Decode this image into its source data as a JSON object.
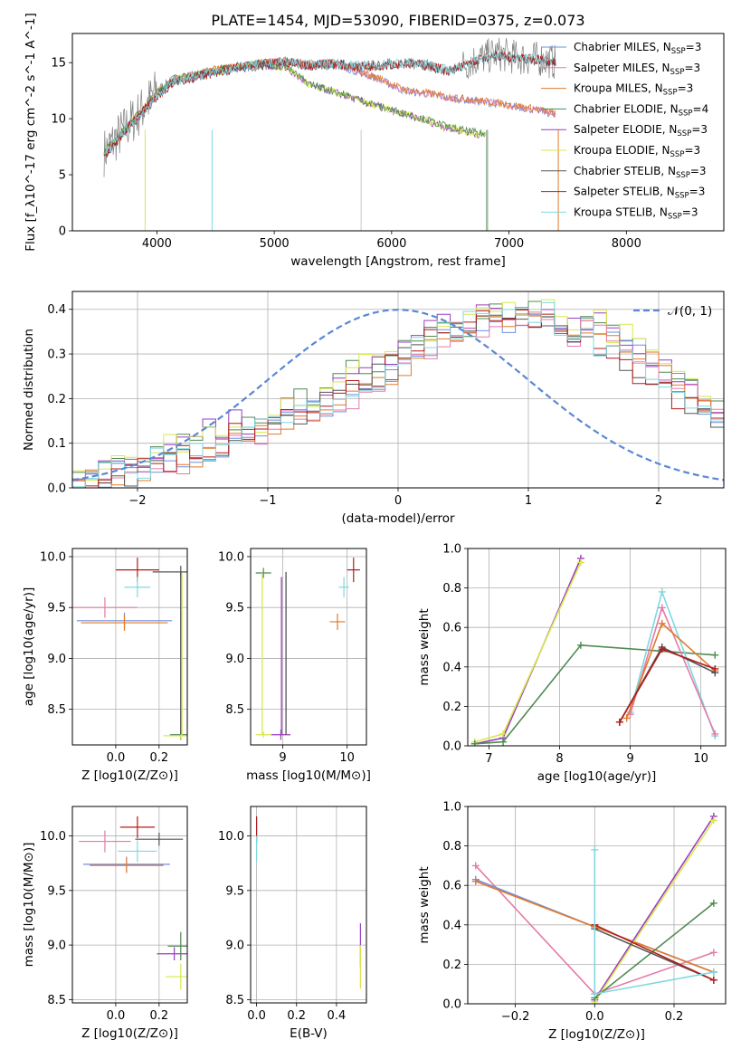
{
  "colors": {
    "Chabrier MILES": "#6f8fe0",
    "Salpeter MILES": "#e57ba9",
    "Kroupa MILES": "#e07b2c",
    "Chabrier ELODIE": "#4f8a52",
    "Salpeter ELODIE": "#9b3cc0",
    "Kroupa ELODIE": "#d8e84a",
    "Chabrier STELIB": "#555555",
    "Salpeter STELIB": "#b31b1b",
    "Kroupa STELIB": "#7fd8e0",
    "normal": "#5b87d6",
    "grid": "#b0b0b0"
  },
  "chart_data": [
    {
      "id": "spectrum",
      "type": "line",
      "title": "PLATE=1454, MJD=53090, FIBERID=0375, z=0.073",
      "xlabel": "wavelength [Angstrom, rest frame]",
      "ylabel": "Flux [f_λ10^-17 erg cm^-2 s^-1 A^-1]",
      "xlim": [
        3280,
        8830
      ],
      "ylim": [
        0,
        17.6
      ],
      "xticks": [
        "4000",
        "5000",
        "6000",
        "7000",
        "8000"
      ],
      "yticks": [
        "0",
        "5",
        "10",
        "15"
      ],
      "grid": false,
      "legend": "top-right",
      "legend_entries": [
        {
          "model": "Chabrier MILES",
          "label": "Chabrier MILES, N",
          "sub": "SSP",
          "eq": "=3"
        },
        {
          "model": "Salpeter MILES",
          "label": "Salpeter MILES, N",
          "sub": "SSP",
          "eq": "=3"
        },
        {
          "model": "Kroupa MILES",
          "label": "Kroupa MILES, N",
          "sub": "SSP",
          "eq": "=3"
        },
        {
          "model": "Chabrier ELODIE",
          "label": "Chabrier ELODIE, N",
          "sub": "SSP",
          "eq": "=4"
        },
        {
          "model": "Salpeter ELODIE",
          "label": "Salpeter ELODIE, N",
          "sub": "SSP",
          "eq": "=3"
        },
        {
          "model": "Kroupa ELODIE",
          "label": "Kroupa ELODIE, N",
          "sub": "SSP",
          "eq": "=3"
        },
        {
          "model": "Chabrier STELIB",
          "label": "Chabrier STELIB, N",
          "sub": "SSP",
          "eq": "=3"
        },
        {
          "model": "Salpeter STELIB",
          "label": "Salpeter STELIB, N",
          "sub": "SSP",
          "eq": "=3"
        },
        {
          "model": "Kroupa STELIB",
          "label": "Kroupa STELIB, N",
          "sub": "SSP",
          "eq": "=3"
        }
      ],
      "data_spectrum": {
        "x": [
          3550,
          3700,
          3850,
          4000,
          4150,
          4300,
          4500,
          4700,
          4900,
          5100,
          5300,
          5500,
          5700,
          5900,
          6100,
          6300,
          6500,
          6700,
          6900,
          7100,
          7300,
          7400
        ],
        "y": [
          7.0,
          8.8,
          10.5,
          12.5,
          13.5,
          13.8,
          14.2,
          14.6,
          14.8,
          15.0,
          14.7,
          14.9,
          14.6,
          14.8,
          15.0,
          14.8,
          14.3,
          15.2,
          15.8,
          15.4,
          15.3,
          15.0
        ]
      },
      "series": [
        {
          "name": "MILES",
          "x": [
            3550,
            3700,
            3850,
            4000,
            4150,
            4300,
            4500,
            4700,
            4900,
            5100,
            5300,
            5500,
            5700,
            5900,
            6100,
            6300,
            6500,
            6700,
            6900,
            7100,
            7300,
            7400
          ],
          "y": [
            6.8,
            8.6,
            10.3,
            12.2,
            13.4,
            13.7,
            14.3,
            14.6,
            14.9,
            15.1,
            14.8,
            14.9,
            14.2,
            13.5,
            12.5,
            12.2,
            11.8,
            11.6,
            11.3,
            11.0,
            10.6,
            10.3
          ]
        },
        {
          "name": "ELODIE",
          "x": [
            3550,
            3700,
            3850,
            4000,
            4150,
            4300,
            4500,
            4700,
            4900,
            5100,
            5300,
            5500,
            5700,
            5900,
            6100,
            6300,
            6500,
            6800
          ],
          "y": [
            6.9,
            8.7,
            10.4,
            12.3,
            13.5,
            13.8,
            14.2,
            14.6,
            14.8,
            14.5,
            13.0,
            12.4,
            11.7,
            11.0,
            10.4,
            9.8,
            9.1,
            8.5
          ]
        },
        {
          "name": "STELIB",
          "x": [
            3550,
            3700,
            3850,
            4000,
            4150,
            4300,
            4500,
            4700,
            4900,
            5100,
            5300,
            5500,
            5700,
            5900,
            6100,
            6300,
            6500,
            6700,
            6900,
            7100,
            7300,
            7400
          ],
          "y": [
            6.7,
            8.5,
            10.2,
            12.0,
            13.3,
            13.6,
            14.1,
            14.5,
            14.8,
            15.0,
            14.7,
            14.9,
            14.6,
            14.7,
            14.9,
            14.7,
            14.2,
            15.1,
            15.6,
            15.3,
            15.2,
            15.0
          ]
        }
      ]
    },
    {
      "id": "residuals",
      "type": "line",
      "xlabel": "(data-model)/error",
      "ylabel": "Normed distribution",
      "xlim": [
        -2.5,
        2.5
      ],
      "ylim": [
        0,
        0.44
      ],
      "xticks": [
        "−2",
        "−1",
        "0",
        "1",
        "2"
      ],
      "yticks": [
        "0.0",
        "0.1",
        "0.2",
        "0.3",
        "0.4"
      ],
      "grid": true,
      "legend": "top-right",
      "legend_label": "𝒩(0, 1)",
      "normal_curve": {
        "mean": 0,
        "sigma": 1
      },
      "bin_edges_start": -2.5,
      "bin_width": 0.1,
      "series": [
        {
          "name": "ELODIE",
          "values": [
            0.02,
            0.03,
            0.04,
            0.06,
            0.07,
            0.06,
            0.08,
            0.1,
            0.11,
            0.12,
            0.14,
            0.13,
            0.15,
            0.14,
            0.12,
            0.16,
            0.18,
            0.2,
            0.19,
            0.22,
            0.24,
            0.26,
            0.28,
            0.29,
            0.3,
            0.31,
            0.33,
            0.35,
            0.36,
            0.37,
            0.36,
            0.38,
            0.4,
            0.39,
            0.38,
            0.4,
            0.41,
            0.37,
            0.36,
            0.38,
            0.39,
            0.35,
            0.34,
            0.33,
            0.3,
            0.28,
            0.25,
            0.23,
            0.2,
            0.18
          ]
        },
        {
          "name": "MILES",
          "values": [
            0.01,
            0.02,
            0.02,
            0.03,
            0.04,
            0.03,
            0.05,
            0.06,
            0.05,
            0.07,
            0.08,
            0.09,
            0.1,
            0.11,
            0.12,
            0.13,
            0.15,
            0.16,
            0.17,
            0.18,
            0.19,
            0.2,
            0.22,
            0.23,
            0.25,
            0.27,
            0.3,
            0.31,
            0.33,
            0.34,
            0.35,
            0.36,
            0.37,
            0.36,
            0.38,
            0.37,
            0.36,
            0.35,
            0.34,
            0.36,
            0.35,
            0.33,
            0.32,
            0.3,
            0.28,
            0.26,
            0.24,
            0.22,
            0.19,
            0.17
          ]
        },
        {
          "name": "STELIB",
          "values": [
            0.02,
            0.02,
            0.03,
            0.04,
            0.03,
            0.05,
            0.06,
            0.05,
            0.07,
            0.08,
            0.09,
            0.1,
            0.12,
            0.11,
            0.13,
            0.15,
            0.16,
            0.17,
            0.18,
            0.19,
            0.2,
            0.22,
            0.24,
            0.25,
            0.27,
            0.29,
            0.31,
            0.33,
            0.35,
            0.36,
            0.37,
            0.38,
            0.4,
            0.39,
            0.38,
            0.37,
            0.39,
            0.36,
            0.35,
            0.33,
            0.31,
            0.3,
            0.28,
            0.26,
            0.24,
            0.22,
            0.2,
            0.18,
            0.16,
            0.14
          ]
        }
      ]
    },
    {
      "id": "age_Z",
      "type": "scatter",
      "xlabel": "Z [log10(Z/Z⊙)]",
      "ylabel": "age  [log10(age/yr)]",
      "xlim": [
        -0.2,
        0.33
      ],
      "ylim": [
        8.15,
        10.08
      ],
      "xticks": [
        "0.0",
        "0.2"
      ],
      "yticks": [
        "8.5",
        "9.0",
        "9.5",
        "10.0"
      ],
      "grid": true,
      "points": [
        {
          "model": "Salpeter STELIB",
          "x": 0.1,
          "y": 9.87,
          "xerr": 0.1,
          "yerr": 0.12
        },
        {
          "model": "Kroupa STELIB",
          "x": 0.1,
          "y": 9.7,
          "xerr": 0.06,
          "yerr": 0.1
        },
        {
          "model": "Salpeter MILES",
          "x": -0.05,
          "y": 9.5,
          "xerr": 0.15,
          "yerr": 0.1
        },
        {
          "model": "Chabrier MILES",
          "x": 0.04,
          "y": 9.37,
          "xerr": 0.22,
          "yerr": 0.08
        },
        {
          "model": "Kroupa MILES",
          "x": 0.04,
          "y": 9.35,
          "xerr": 0.2,
          "yerr": 0.08
        },
        {
          "model": "Chabrier STELIB",
          "x": 0.3,
          "y": 9.85,
          "xerr": 0.13,
          "yerr": 0.06
        },
        {
          "model": "Chabrier ELODIE",
          "x": 0.3,
          "y": 8.25,
          "xerr": 0.05,
          "yerr": 0.05
        },
        {
          "model": "Kroupa ELODIE",
          "x": 0.3,
          "y": 8.24,
          "xerr": 0.08,
          "yerr": 0.03
        }
      ]
    },
    {
      "id": "age_mass",
      "type": "scatter",
      "xlabel": "mass [log10(M/M⊙)]",
      "ylabel": "",
      "xlim": [
        8.5,
        10.3
      ],
      "ylim": [
        8.15,
        10.08
      ],
      "xticks": [
        "9",
        "10"
      ],
      "yticks": [
        "8.5",
        "9.0",
        "9.5",
        "10.0"
      ],
      "grid": true,
      "points": [
        {
          "model": "Salpeter STELIB",
          "x": 10.1,
          "y": 9.87,
          "xerr": 0.1,
          "yerr": 0.12
        },
        {
          "model": "Kroupa STELIB",
          "x": 9.95,
          "y": 9.7,
          "xerr": 0.08,
          "yerr": 0.1
        },
        {
          "model": "Chabrier ELODIE",
          "x": 8.7,
          "y": 9.84,
          "xerr": 0.12,
          "yerr": 0.05
        },
        {
          "model": "Kroupa MILES",
          "x": 9.85,
          "y": 9.36,
          "xerr": 0.12,
          "yerr": 0.08
        },
        {
          "model": "Salpeter ELODIE",
          "x": 8.97,
          "y": 8.25,
          "xerr": 0.15,
          "yerr": 0.05
        },
        {
          "model": "Kroupa ELODIE",
          "x": 8.7,
          "y": 8.25,
          "xerr": 0.12,
          "yerr": 0.03
        }
      ]
    },
    {
      "id": "massweight_age",
      "type": "line",
      "xlabel": "age  [log10(age/yr)]",
      "ylabel": "mass weight",
      "xlim": [
        6.7,
        10.35
      ],
      "ylim": [
        0,
        1.0
      ],
      "xticks": [
        "7",
        "8",
        "9",
        "10"
      ],
      "yticks": [
        "0.0",
        "0.2",
        "0.4",
        "0.6",
        "0.8",
        "1.0"
      ],
      "grid": true,
      "series": [
        {
          "model": "Salpeter ELODIE",
          "x": [
            6.8,
            7.2,
            8.3
          ],
          "y": [
            0.01,
            0.04,
            0.95
          ]
        },
        {
          "model": "Kroupa ELODIE",
          "x": [
            6.8,
            7.2,
            8.3
          ],
          "y": [
            0.02,
            0.06,
            0.93
          ]
        },
        {
          "model": "Chabrier ELODIE",
          "x": [
            6.8,
            7.2,
            8.3,
            10.2
          ],
          "y": [
            0.01,
            0.02,
            0.51,
            0.46
          ]
        },
        {
          "model": "Kroupa STELIB",
          "x": [
            9.0,
            9.45,
            10.2
          ],
          "y": [
            0.17,
            0.78,
            0.05
          ]
        },
        {
          "model": "Salpeter MILES",
          "x": [
            9.0,
            9.45,
            10.2
          ],
          "y": [
            0.16,
            0.7,
            0.06
          ]
        },
        {
          "model": "Kroupa MILES",
          "x": [
            8.95,
            9.45,
            10.2
          ],
          "y": [
            0.14,
            0.62,
            0.38
          ]
        },
        {
          "model": "Chabrier STELIB",
          "x": [
            8.85,
            9.45,
            10.2
          ],
          "y": [
            0.12,
            0.5,
            0.37
          ]
        },
        {
          "model": "Salpeter STELIB",
          "x": [
            8.85,
            9.45,
            10.2
          ],
          "y": [
            0.12,
            0.49,
            0.39
          ]
        }
      ]
    },
    {
      "id": "mass_Z",
      "type": "scatter",
      "xlabel": "Z [log10(Z/Z⊙)]",
      "ylabel": "mass [log10(M/M⊙)]",
      "xlim": [
        -0.2,
        0.33
      ],
      "ylim": [
        8.47,
        10.27
      ],
      "xticks": [
        "0.0",
        "0.2"
      ],
      "yticks": [
        "8.5",
        "9.0",
        "9.5",
        "10.0"
      ],
      "grid": true,
      "points": [
        {
          "model": "Salpeter STELIB",
          "x": 0.1,
          "y": 10.08,
          "xerr": 0.08,
          "yerr": 0.1
        },
        {
          "model": "Salpeter MILES",
          "x": -0.05,
          "y": 9.95,
          "xerr": 0.12,
          "yerr": 0.1
        },
        {
          "model": "Chabrier STELIB",
          "x": 0.2,
          "y": 9.97,
          "xerr": 0.11,
          "yerr": 0.06
        },
        {
          "model": "Kroupa STELIB",
          "x": 0.1,
          "y": 9.86,
          "xerr": 0.09,
          "yerr": 0.1
        },
        {
          "model": "Chabrier MILES",
          "x": 0.05,
          "y": 9.74,
          "xerr": 0.2,
          "yerr": 0.07
        },
        {
          "model": "Kroupa MILES",
          "x": 0.05,
          "y": 9.73,
          "xerr": 0.17,
          "yerr": 0.07
        },
        {
          "model": "Salpeter ELODIE",
          "x": 0.27,
          "y": 8.92,
          "xerr": 0.08,
          "yerr": 0.06
        },
        {
          "model": "Chabrier ELODIE",
          "x": 0.3,
          "y": 8.99,
          "xerr": 0.06,
          "yerr": 0.13
        },
        {
          "model": "Kroupa ELODIE",
          "x": 0.3,
          "y": 8.71,
          "xerr": 0.07,
          "yerr": 0.12
        }
      ]
    },
    {
      "id": "mass_EBV",
      "type": "scatter",
      "xlabel": "E(B-V)",
      "ylabel": "",
      "xlim": [
        -0.03,
        0.55
      ],
      "ylim": [
        8.47,
        10.27
      ],
      "xticks": [
        "0.0",
        "0.2",
        "0.4"
      ],
      "yticks": [
        "8.5",
        "9.0",
        "9.5",
        "10.0"
      ],
      "grid": true,
      "points": [
        {
          "model": "Salpeter STELIB",
          "x": 0.0,
          "y": 10.06,
          "xerr": 0.0,
          "yerr": 0.12
        },
        {
          "model": "Kroupa STELIB",
          "x": 0.0,
          "y": 9.88,
          "xerr": 0.0,
          "yerr": 0.12
        },
        {
          "model": "Salpeter ELODIE",
          "x": 0.52,
          "y": 9.0,
          "xerr": 0.0,
          "yerr": 0.2
        },
        {
          "model": "Kroupa ELODIE",
          "x": 0.52,
          "y": 8.8,
          "xerr": 0.0,
          "yerr": 0.2
        }
      ]
    },
    {
      "id": "massweight_Z",
      "type": "line",
      "xlabel": "Z [log10(Z/Z⊙)]",
      "ylabel": "mass weight",
      "xlim": [
        -0.32,
        0.33
      ],
      "ylim": [
        0,
        1.0
      ],
      "xticks": [
        "−0.2",
        "0.0",
        "0.2"
      ],
      "yticks": [
        "0.0",
        "0.2",
        "0.4",
        "0.6",
        "0.8",
        "1.0"
      ],
      "grid": true,
      "series": [
        {
          "model": "Salpeter MILES",
          "x": [
            -0.3,
            0.0,
            0.3
          ],
          "y": [
            0.7,
            0.05,
            0.26
          ]
        },
        {
          "model": "Chabrier MILES",
          "x": [
            -0.3,
            0.0,
            0.3
          ],
          "y": [
            0.63,
            0.39,
            0.16
          ]
        },
        {
          "model": "Kroupa MILES",
          "x": [
            -0.3,
            0.0,
            0.3
          ],
          "y": [
            0.62,
            0.39,
            0.16
          ]
        },
        {
          "model": "Salpeter ELODIE",
          "x": [
            0.0,
            0.3
          ],
          "y": [
            0.02,
            0.95
          ]
        },
        {
          "model": "Kroupa ELODIE",
          "x": [
            0.0,
            0.3
          ],
          "y": [
            0.01,
            0.93
          ]
        },
        {
          "model": "Chabrier ELODIE",
          "x": [
            0.0,
            0.3
          ],
          "y": [
            0.03,
            0.51
          ]
        },
        {
          "model": "Chabrier STELIB",
          "x": [
            0.0,
            0.3
          ],
          "y": [
            0.38,
            0.12
          ]
        },
        {
          "model": "Salpeter STELIB",
          "x": [
            0.0,
            0.3
          ],
          "y": [
            0.4,
            0.12
          ]
        },
        {
          "model": "Kroupa STELIB",
          "x": [
            0.0,
            0.0,
            0.3
          ],
          "y": [
            0.78,
            0.05,
            0.16
          ]
        }
      ]
    }
  ]
}
